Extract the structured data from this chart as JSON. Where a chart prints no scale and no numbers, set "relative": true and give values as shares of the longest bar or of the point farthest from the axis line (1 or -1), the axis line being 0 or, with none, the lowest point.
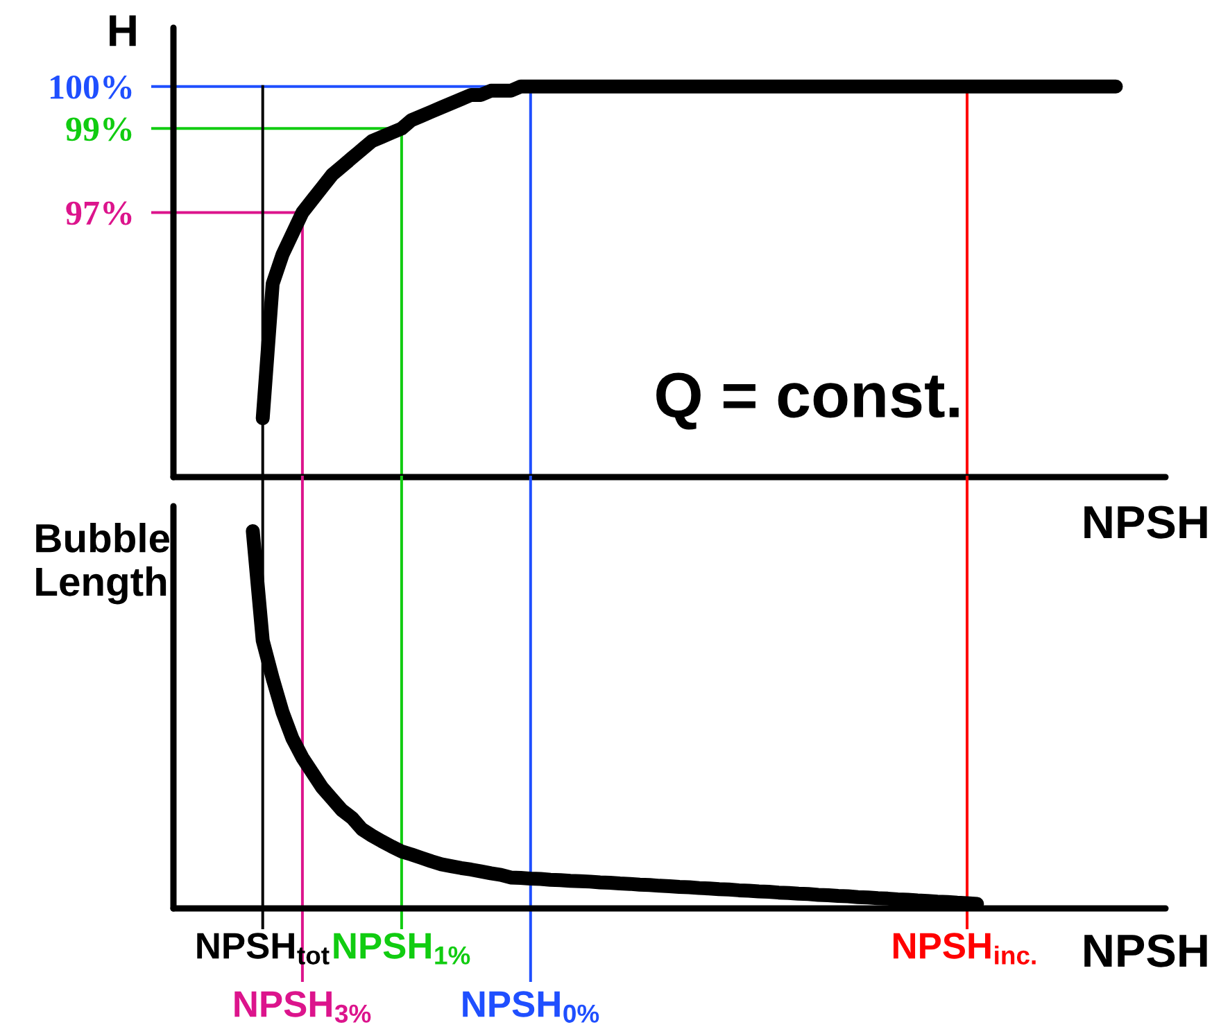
{
  "chart_data": [
    {
      "type": "line",
      "ylabel": "H",
      "xlabel": "NPSH",
      "ylim": [
        90.7,
        101.4
      ],
      "yticks": [
        {
          "value": 97,
          "label": "97%"
        },
        {
          "value": 99,
          "label": "99%"
        },
        {
          "value": 100,
          "label": "100%"
        }
      ],
      "tick_labels": "y",
      "annotations": [
        "Q = const."
      ],
      "categories": [
        null,
        null,
        null,
        null,
        null,
        null,
        null,
        null,
        null,
        "NPSH$_{tot}$",
        null,
        null,
        null,
        "NPSH$_{3%}$",
        null,
        null,
        null,
        null,
        null,
        null,
        null,
        null,
        null,
        "NPSH$_{1%}$",
        null,
        null,
        null,
        null,
        null,
        null,
        null,
        null,
        null,
        null,
        null,
        null,
        "NPSH$_{0%}$",
        null,
        null,
        null,
        null,
        null,
        null,
        null,
        null,
        null,
        null,
        null,
        null,
        null,
        null,
        null,
        null,
        null,
        null,
        null,
        null,
        null,
        null,
        null,
        null,
        null,
        null,
        null,
        null,
        null,
        null,
        null,
        null,
        null,
        null,
        null,
        null,
        null,
        null,
        null,
        null,
        null,
        null,
        null,
        "NPSH$_{inc.}$",
        null,
        null,
        null,
        null,
        null,
        null,
        null,
        null,
        null,
        null,
        null,
        null,
        null,
        null,
        null,
        null,
        null,
        null,
        null,
        null
      ],
      "series": [
        {
          "color": "#000000",
          "values": [
            null,
            null,
            null,
            null,
            null,
            null,
            null,
            null,
            null,
            92.1,
            95.3,
            96.0,
            96.5,
            97.0,
            97.3,
            97.6,
            97.9,
            98.1,
            98.3,
            98.5,
            98.7,
            98.8,
            98.9,
            99.0,
            99.2,
            99.3,
            99.4,
            99.5,
            99.6,
            99.7,
            99.8,
            99.8,
            99.9,
            99.9,
            99.9,
            100,
            100,
            100,
            100,
            100,
            100,
            100,
            100,
            100,
            100,
            100,
            100,
            100,
            100,
            100,
            100,
            100,
            100,
            100,
            100,
            100,
            100,
            100,
            100,
            100,
            100,
            100,
            100,
            100,
            100,
            100,
            100,
            100,
            100,
            100,
            100,
            100,
            100,
            100,
            100,
            100,
            100,
            100,
            100,
            100,
            100,
            100,
            100,
            100,
            100,
            100,
            100,
            100,
            100,
            100,
            100,
            100,
            100,
            100,
            100,
            100,
            null,
            null,
            null,
            null,
            null
          ]
        }
      ],
      "ref_lines": [
        {
          "axis": "y",
          "value": 97,
          "color": "#dc148c"
        },
        {
          "axis": "y",
          "value": 99,
          "color": "#11cc11"
        },
        {
          "axis": "y",
          "value": 100,
          "color": "#1f4fff"
        },
        {
          "axis": "x",
          "value": "NPSH$_{tot}$",
          "color": "#000000"
        },
        {
          "axis": "x",
          "value": "NPSH$_{3%}$",
          "color": "#dc148c"
        },
        {
          "axis": "x",
          "value": "NPSH$_{1%}$",
          "color": "#11cc11"
        },
        {
          "axis": "x",
          "value": "NPSH$_{0%}$",
          "color": "#1f4fff"
        },
        {
          "axis": "x",
          "value": "NPSH$_{inc.}$",
          "color": "#ff0000"
        }
      ]
    },
    {
      "type": "line",
      "ylabel": "Bubble\nLength",
      "xlabel": "NPSH",
      "relative": true,
      "tick_labels": "x",
      "categories": [
        null,
        null,
        null,
        null,
        null,
        null,
        null,
        null,
        null,
        "NPSH$_{tot}$",
        null,
        null,
        null,
        "NPSH$_{3%}$",
        null,
        null,
        null,
        null,
        null,
        null,
        null,
        null,
        null,
        "NPSH$_{1%}$",
        null,
        null,
        null,
        null,
        null,
        null,
        null,
        null,
        null,
        null,
        null,
        null,
        "NPSH$_{0%}$",
        null,
        null,
        null,
        null,
        null,
        null,
        null,
        null,
        null,
        null,
        null,
        null,
        null,
        null,
        null,
        null,
        null,
        null,
        null,
        null,
        null,
        null,
        null,
        null,
        null,
        null,
        null,
        null,
        null,
        null,
        null,
        null,
        null,
        null,
        null,
        null,
        null,
        null,
        null,
        null,
        null,
        null,
        null,
        "NPSH$_{inc.}$",
        null,
        null,
        null,
        null,
        null,
        null,
        null,
        null,
        null,
        null,
        null,
        null,
        null,
        null,
        null,
        null,
        null,
        null,
        null,
        null
      ],
      "series": [
        {
          "color": "#000000",
          "values": [
            null,
            null,
            null,
            null,
            null,
            null,
            null,
            null,
            1,
            0.71,
            0.61,
            0.52,
            0.45,
            0.4,
            0.36,
            0.32,
            0.29,
            0.26,
            0.24,
            0.21,
            0.193,
            0.178,
            0.164,
            0.151,
            0.143,
            0.134,
            0.125,
            0.117,
            0.112,
            0.107,
            0.103,
            0.098,
            0.093,
            0.089,
            0.082,
            0.081,
            0.079,
            0.078,
            0.076,
            0.075,
            0.073,
            0.072,
            0.071,
            0.069,
            0.068,
            0.066,
            0.065,
            0.063,
            0.062,
            0.06,
            0.059,
            0.057,
            0.056,
            0.054,
            0.053,
            0.051,
            0.05,
            0.048,
            0.047,
            0.045,
            0.044,
            0.042,
            0.041,
            0.039,
            0.038,
            0.036,
            0.035,
            0.033,
            0.032,
            0.03,
            0.029,
            0.027,
            0.026,
            0.024,
            0.023,
            0.021,
            0.02,
            0.018,
            0.017,
            0.015,
            0.014,
            0.012,
            null,
            null,
            null,
            null,
            null,
            null,
            null,
            null,
            null,
            null,
            null,
            null,
            null,
            null,
            null,
            null,
            null,
            null,
            null
          ]
        }
      ],
      "ref_lines": [
        {
          "axis": "x",
          "value": "NPSH$_{tot}$",
          "color": "#000000"
        },
        {
          "axis": "x",
          "value": "NPSH$_{3%}$",
          "color": "#dc148c"
        },
        {
          "axis": "x",
          "value": "NPSH$_{1%}$",
          "color": "#11cc11"
        },
        {
          "axis": "x",
          "value": "NPSH$_{0%}$",
          "color": "#1f4fff"
        },
        {
          "axis": "x",
          "value": "NPSH$_{inc.}$",
          "color": "#ff0000"
        }
      ]
    }
  ]
}
